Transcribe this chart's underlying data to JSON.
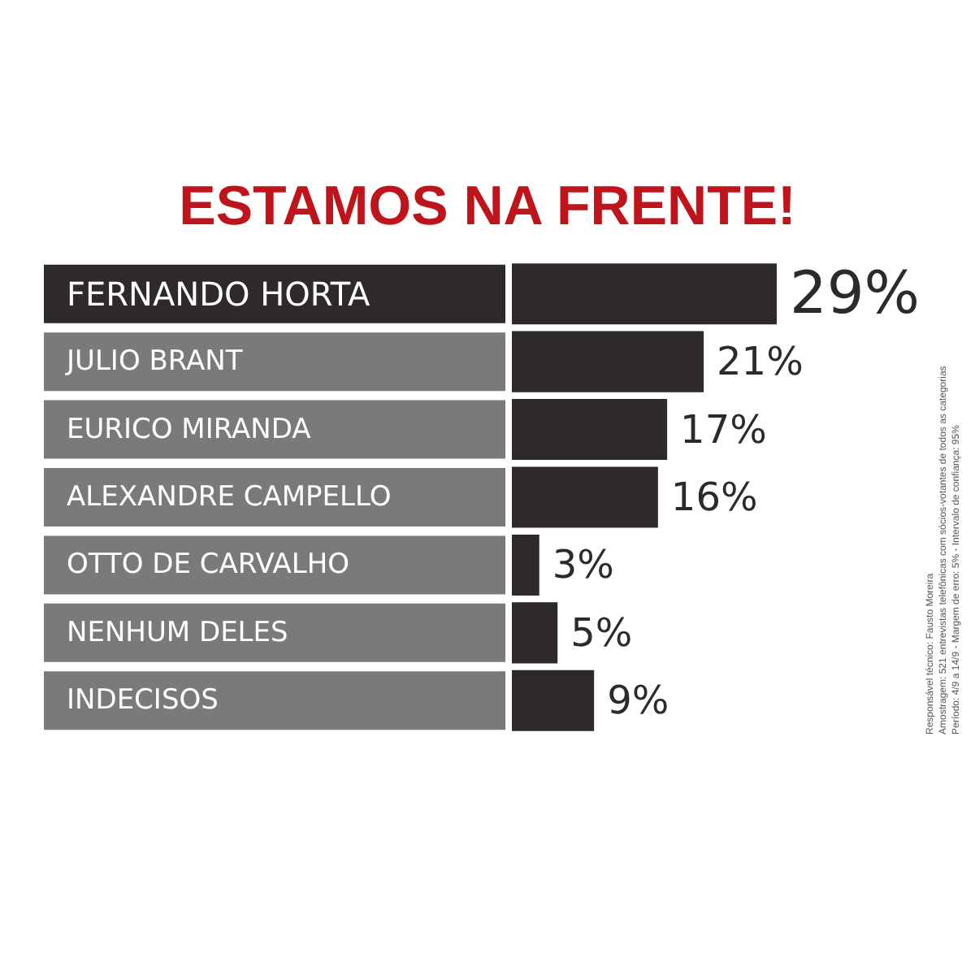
{
  "chart_data": {
    "type": "bar",
    "orientation": "horizontal",
    "title": "ESTAMOS NA FRENTE!",
    "categories": [
      "FERNANDO HORTA",
      "JULIO BRANT",
      "EURICO MIRANDA",
      "ALEXANDRE CAMPELLO",
      "OTTO DE CARVALHO",
      "NENHUM DELES",
      "INDECISOS"
    ],
    "values": [
      29,
      21,
      17,
      16,
      3,
      5,
      9
    ],
    "value_labels": [
      "29%",
      "21%",
      "17%",
      "16%",
      "3%",
      "5%",
      "9%"
    ],
    "color": "#2e2a29",
    "annotations": [
      "Responsável técnico: Fausto Moreira",
      "Amostragem: 521 entrevistas telefônicas com sócios-votantes de todos as categorias",
      "Período: 4/9 a 14/9 - Margem de erro: 5% - Intervalo de confiança: 95%"
    ]
  }
}
